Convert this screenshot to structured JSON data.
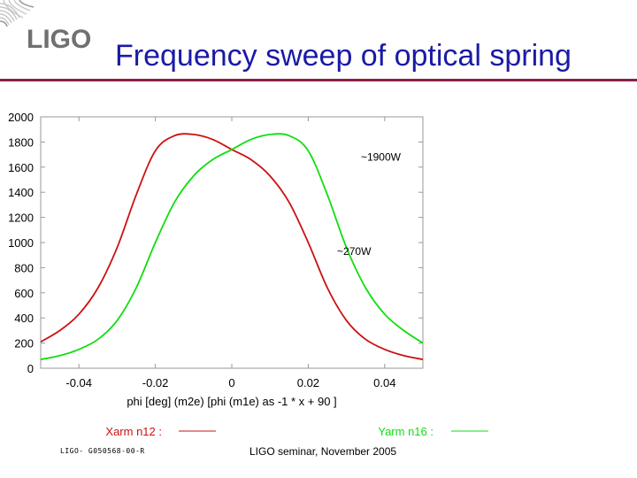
{
  "slide": {
    "title": "Frequency sweep of optical spring",
    "logo_text": "LIGO",
    "footer_left": "LIGO- G050568-00-R",
    "footer_center": "LIGO seminar, November 2005"
  },
  "colors": {
    "accent": "#8a1f4a",
    "title": "#1a1aa6",
    "red": "#cc1111",
    "green": "#11dd11"
  },
  "chart_data": {
    "type": "line",
    "xlabel": "phi [deg] (m2e) [phi (m1e) as -1 * x + 90 ]",
    "ylabel": "",
    "xlim": [
      -0.05,
      0.05
    ],
    "ylim": [
      0,
      2000
    ],
    "xticks": [
      "-0.04",
      "-0.02",
      "0",
      "0.02",
      "0.04"
    ],
    "xtick_values": [
      -0.04,
      -0.02,
      0,
      0.02,
      0.04
    ],
    "yticks": [
      "0",
      "200",
      "400",
      "600",
      "800",
      "1000",
      "1200",
      "1400",
      "1600",
      "1800",
      "2000"
    ],
    "ytick_values": [
      0,
      200,
      400,
      600,
      800,
      1000,
      1200,
      1400,
      1600,
      1800,
      2000
    ],
    "series": [
      {
        "name": "Xarm n12 :",
        "color": "#cc1111",
        "x": [
          -0.05,
          -0.045,
          -0.04,
          -0.035,
          -0.03,
          -0.025,
          -0.02,
          -0.015,
          -0.01,
          -0.005,
          0,
          0.005,
          0.01,
          0.015,
          0.02,
          0.025,
          0.03,
          0.035,
          0.04,
          0.045,
          0.05
        ],
        "y": [
          210,
          300,
          430,
          640,
          960,
          1380,
          1730,
          1850,
          1860,
          1820,
          1740,
          1660,
          1530,
          1320,
          1000,
          640,
          380,
          230,
          150,
          100,
          70
        ]
      },
      {
        "name": "Yarm n16 :",
        "color": "#11dd11",
        "x": [
          -0.05,
          -0.045,
          -0.04,
          -0.035,
          -0.03,
          -0.025,
          -0.02,
          -0.015,
          -0.01,
          -0.005,
          0,
          0.005,
          0.01,
          0.015,
          0.02,
          0.025,
          0.03,
          0.035,
          0.04,
          0.045,
          0.05
        ],
        "y": [
          70,
          100,
          150,
          230,
          380,
          640,
          1000,
          1320,
          1530,
          1660,
          1740,
          1820,
          1860,
          1850,
          1730,
          1380,
          960,
          640,
          430,
          300,
          200
        ]
      }
    ],
    "annotations": [
      {
        "text": "~1900W",
        "x": 0.039,
        "y": 1650
      },
      {
        "text": "~270W",
        "x": 0.032,
        "y": 900
      }
    ],
    "legend": "bottom"
  }
}
